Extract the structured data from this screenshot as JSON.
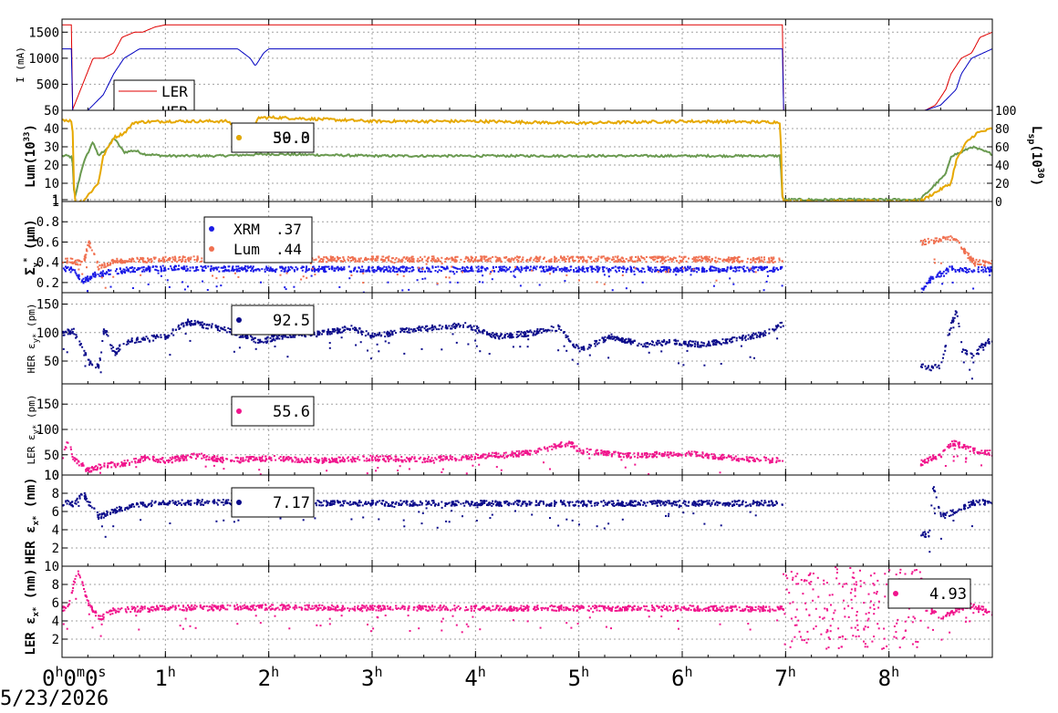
{
  "date_label": "5/23/2026",
  "time_axis": {
    "range_hours": [
      0,
      9.0
    ],
    "ticks": [
      {
        "hour": 0,
        "label": "0",
        "sup": "h",
        "label2": "0",
        "sup2": "m",
        "label3": "0",
        "sup3": "s"
      },
      {
        "hour": 1,
        "label": "1",
        "sup": "h"
      },
      {
        "hour": 2,
        "label": "2",
        "sup": "h"
      },
      {
        "hour": 3,
        "label": "3",
        "sup": "h"
      },
      {
        "hour": 4,
        "label": "4",
        "sup": "h"
      },
      {
        "hour": 5,
        "label": "5",
        "sup": "h"
      },
      {
        "hour": 6,
        "label": "6",
        "sup": "h"
      },
      {
        "hour": 7,
        "label": "7",
        "sup": "h"
      },
      {
        "hour": 8,
        "label": "8",
        "sup": "h"
      }
    ]
  },
  "colors": {
    "ler_current": "#e00000",
    "her_current": "#0000c0",
    "lum": "#6a9a50",
    "lsp": "#e6a800",
    "xrm": "#1a1ae6",
    "lum_size": "#f07050",
    "her_emit": "#0a0a8a",
    "ler_emit": "#f0148c",
    "grid": "#a0a0a0"
  },
  "chart_data": [
    {
      "type": "line",
      "ylabel": "I (mA)",
      "ylim": [
        0,
        1750
      ],
      "yticks": [
        500,
        1000,
        1500
      ],
      "grid": true,
      "legend": {
        "placement": "bottom-left",
        "entries": [
          "LER",
          "HER"
        ]
      },
      "series": [
        {
          "name": "LER",
          "color_key": "ler_current",
          "x": [
            0,
            0.1,
            0.1,
            0.28,
            0.3,
            0.4,
            0.5,
            0.58,
            0.7,
            0.78,
            0.9,
            1.0,
            1.8,
            3.0,
            5.0,
            6.9,
            6.97,
            6.97,
            8.1,
            8.35,
            8.45,
            8.55,
            8.6,
            8.7,
            8.8,
            8.88,
            9.0
          ],
          "y": [
            1640,
            1640,
            0,
            900,
            1000,
            1000,
            1100,
            1400,
            1500,
            1500,
            1600,
            1640,
            1640,
            1640,
            1640,
            1640,
            1640,
            0,
            0,
            0,
            100,
            400,
            700,
            1000,
            1100,
            1400,
            1500
          ]
        },
        {
          "name": "HER",
          "color_key": "her_current",
          "x": [
            0,
            0.1,
            0.1,
            0.25,
            0.4,
            0.5,
            0.6,
            0.75,
            0.9,
            1.0,
            1.7,
            1.82,
            1.87,
            1.95,
            2.0,
            3.0,
            5.0,
            6.97,
            6.97,
            8.1,
            8.35,
            8.5,
            8.65,
            8.7,
            8.8,
            9.0
          ],
          "y": [
            1180,
            1180,
            0,
            0,
            300,
            700,
            1000,
            1180,
            1180,
            1180,
            1180,
            1000,
            850,
            1100,
            1180,
            1180,
            1180,
            1180,
            0,
            0,
            0,
            100,
            400,
            700,
            1000,
            1180
          ]
        }
      ]
    },
    {
      "type": "line",
      "ylabel": "Lum(10",
      "ylabel_sup": "33",
      "ylabel_tail": ")",
      "ylim": [
        0,
        50
      ],
      "yticks": [
        1,
        10,
        20,
        30,
        40,
        50
      ],
      "y2label": "L",
      "y2label_sub": "sp",
      "y2label_mid": "(10",
      "y2label_sup": "30",
      "y2label_tail": ")",
      "y2lim": [
        0,
        100
      ],
      "y2ticks": [
        0,
        20,
        40,
        60,
        80,
        100
      ],
      "grid": true,
      "legend": {
        "placement": "top-left",
        "values": [
          "50.0",
          "39.3"
        ]
      },
      "series": [
        {
          "name": "Lum",
          "color_key": "lum",
          "axis": "left",
          "x": [
            0,
            0.06,
            0.1,
            0.12,
            0.2,
            0.3,
            0.35,
            0.45,
            0.5,
            0.6,
            0.7,
            0.8,
            1.0,
            1.5,
            2.0,
            3.0,
            4.0,
            5.0,
            6.0,
            6.95,
            6.97,
            8.3,
            8.55,
            8.6,
            8.7,
            8.8,
            9.0
          ],
          "y": [
            25,
            25,
            24,
            1,
            20,
            33,
            25,
            30,
            35,
            27,
            28,
            26,
            25,
            25,
            26,
            25,
            25,
            25,
            25,
            25,
            1,
            1,
            15,
            25,
            27,
            30,
            26
          ]
        },
        {
          "name": "Lsp",
          "color_key": "lsp",
          "axis": "right",
          "x": [
            0,
            0.1,
            0.12,
            0.2,
            0.35,
            0.4,
            0.5,
            0.6,
            0.7,
            1.0,
            1.6,
            1.78,
            1.82,
            1.9,
            2.1,
            3.0,
            4.0,
            5.0,
            6.0,
            6.95,
            6.97,
            8.3,
            8.6,
            8.65,
            8.75,
            8.85,
            9.0
          ],
          "y": [
            90,
            88,
            0,
            0,
            20,
            50,
            70,
            75,
            87,
            88,
            88,
            75,
            68,
            92,
            92,
            88,
            88,
            86,
            88,
            87,
            0,
            0,
            20,
            45,
            65,
            75,
            80
          ]
        }
      ]
    },
    {
      "type": "scatter",
      "ylabel": "Σ",
      "ylabel_sub": "y",
      "ylabel_sup": "*",
      "ylabel_tail": " (μm)",
      "ylim": [
        0.1,
        1.0
      ],
      "yticks": [
        0.2,
        0.4,
        0.6,
        0.8,
        1.0
      ],
      "grid": true,
      "legend": {
        "placement": "top-left",
        "entries": [
          {
            "label": "XRM",
            "value": ".37"
          },
          {
            "label": "Lum",
            "value": ".44"
          }
        ]
      },
      "series": [
        {
          "name": "XRM",
          "color_key": "xrm",
          "x": [
            0,
            0.05,
            0.1,
            0.2,
            0.3,
            0.4,
            0.5,
            0.6,
            0.8,
            1.0,
            2.0,
            3.0,
            4.0,
            5.0,
            6.0,
            6.95,
            8.3,
            8.4,
            8.5,
            8.6,
            8.7,
            8.8,
            9.0
          ],
          "y": [
            0.35,
            0.34,
            0.33,
            0.22,
            0.28,
            0.3,
            0.32,
            0.33,
            0.34,
            0.35,
            0.34,
            0.34,
            0.34,
            0.34,
            0.34,
            0.34,
            0.12,
            0.25,
            0.3,
            0.35,
            0.33,
            0.34,
            0.34
          ]
        },
        {
          "name": "Lum",
          "color_key": "lum_size",
          "x": [
            0,
            0.1,
            0.2,
            0.25,
            0.35,
            0.5,
            0.7,
            1.0,
            2.0,
            3.0,
            4.0,
            5.0,
            6.0,
            6.95,
            8.65,
            8.7,
            8.8,
            8.9,
            9.0
          ],
          "y": [
            0.43,
            0.42,
            0.4,
            0.6,
            0.35,
            0.42,
            0.43,
            0.44,
            0.44,
            0.44,
            0.44,
            0.44,
            0.44,
            0.43,
            0.65,
            0.55,
            0.42,
            0.4,
            0.41
          ]
        }
      ]
    },
    {
      "type": "scatter",
      "ylabel": "HER ε",
      "ylabel_sub": "y*",
      "ylabel_tail": " (pm)",
      "ylim": [
        10,
        170
      ],
      "yticks": [
        50,
        100,
        150
      ],
      "grid": true,
      "legend": {
        "placement": "top-left",
        "values": [
          "92.5"
        ]
      },
      "series": [
        {
          "name": "HER",
          "color_key": "her_emit",
          "x": [
            0,
            0.1,
            0.25,
            0.35,
            0.4,
            0.5,
            0.6,
            0.8,
            1.0,
            1.2,
            1.5,
            1.7,
            1.9,
            2.1,
            2.5,
            2.8,
            3.0,
            3.3,
            3.6,
            3.9,
            4.2,
            4.5,
            4.8,
            5.0,
            5.3,
            5.6,
            5.9,
            6.2,
            6.5,
            6.8,
            6.95,
            8.4,
            8.5,
            8.6,
            8.65,
            8.7,
            8.8,
            8.9,
            9.0
          ],
          "y": [
            100,
            105,
            50,
            40,
            110,
            65,
            85,
            90,
            95,
            120,
            110,
            100,
            85,
            95,
            100,
            110,
            95,
            105,
            110,
            115,
            95,
            100,
            110,
            70,
            95,
            80,
            85,
            80,
            90,
            100,
            115,
            40,
            50,
            120,
            140,
            70,
            60,
            80,
            90
          ]
        }
      ]
    },
    {
      "type": "scatter",
      "ylabel": "LER ε",
      "ylabel_sub": "y*",
      "ylabel_tail": " (pm)",
      "ylim": [
        10,
        190
      ],
      "yticks": [
        10,
        50,
        100,
        150
      ],
      "grid": true,
      "legend": {
        "placement": "top-left",
        "values": [
          "55.6"
        ]
      },
      "series": [
        {
          "name": "LER",
          "color_key": "ler_emit",
          "x": [
            0,
            0.05,
            0.1,
            0.25,
            0.3,
            0.4,
            0.6,
            0.8,
            1.0,
            1.3,
            1.6,
            2.0,
            2.5,
            3.0,
            3.5,
            4.0,
            4.5,
            4.9,
            5.0,
            5.5,
            6.0,
            6.5,
            6.95,
            8.3,
            8.4,
            8.5,
            8.6,
            8.7,
            8.8,
            9.0
          ],
          "y": [
            50,
            80,
            45,
            20,
            25,
            30,
            35,
            45,
            40,
            50,
            40,
            45,
            40,
            45,
            42,
            48,
            55,
            75,
            60,
            50,
            55,
            45,
            40,
            35,
            45,
            50,
            75,
            70,
            60,
            55
          ]
        }
      ]
    },
    {
      "type": "scatter",
      "ylabel": "HER ε",
      "ylabel_sub": "x*",
      "ylabel_tail": " (nm)",
      "ylim": [
        0,
        10
      ],
      "yticks": [
        2,
        4,
        6,
        8,
        10
      ],
      "grid": true,
      "legend": {
        "placement": "top-left",
        "values": [
          "7.17"
        ]
      },
      "series": [
        {
          "name": "HER",
          "color_key": "her_emit",
          "x": [
            0,
            0.05,
            0.1,
            0.2,
            0.28,
            0.35,
            0.5,
            0.7,
            1.0,
            2.0,
            3.0,
            4.0,
            5.0,
            6.0,
            6.95,
            8.38,
            8.42,
            8.5,
            8.6,
            8.7,
            8.8,
            9.0
          ],
          "y": [
            7.0,
            7.1,
            6.9,
            8.0,
            6.5,
            5.5,
            6.2,
            6.8,
            7.1,
            7.1,
            7.0,
            7.0,
            7.0,
            7.0,
            7.0,
            3.5,
            9.0,
            5.5,
            6.0,
            6.5,
            7.0,
            7.2
          ]
        }
      ]
    },
    {
      "type": "scatter",
      "ylabel": "LER ε",
      "ylabel_sub": "x*",
      "ylabel_tail": " (nm)",
      "ylim": [
        0,
        10
      ],
      "yticks": [
        2,
        4,
        6,
        8,
        10
      ],
      "grid": true,
      "legend": {
        "placement": "top-right",
        "values": [
          "4.93"
        ]
      },
      "series": [
        {
          "name": "LER",
          "color_key": "ler_emit",
          "x": [
            0,
            0.05,
            0.1,
            0.15,
            0.25,
            0.35,
            0.5,
            1.0,
            2.0,
            3.0,
            4.0,
            5.0,
            6.0,
            6.95,
            8.3,
            8.35,
            8.5,
            8.6,
            8.7,
            8.8,
            9.0
          ],
          "y": [
            5.5,
            5.4,
            8.0,
            9.5,
            6.0,
            4.3,
            5.3,
            5.5,
            5.6,
            5.5,
            5.5,
            5.5,
            5.5,
            5.4,
            9.0,
            5.5,
            4.5,
            5.0,
            5.5,
            5.8,
            5.0
          ]
        }
      ]
    }
  ]
}
